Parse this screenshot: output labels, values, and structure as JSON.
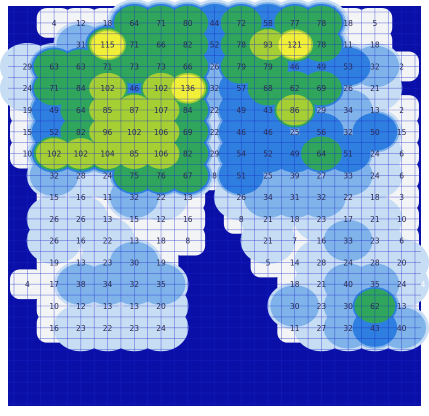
{
  "chart_data": {
    "type": "heatmap",
    "title": "",
    "xlabel": "",
    "ylabel": "",
    "grid": true,
    "legend": "none",
    "colors": {
      "background": "#0a0fa8",
      "grid": "#1a26c8",
      "outer": "#f3f4f5",
      "low": "#c7ddf4",
      "mid_low": "#7fb3ea",
      "mid": "#2f7fe0",
      "mid_high": "#2fa65b",
      "high": "#a6cf34",
      "peak": "#f2ef39"
    },
    "columns": 15,
    "rows": 18,
    "cells": [
      [
        null,
        4,
        12,
        18,
        64,
        71,
        80,
        44,
        72,
        58,
        77,
        78,
        18,
        5,
        null
      ],
      [
        null,
        null,
        31,
        115,
        71,
        66,
        82,
        52,
        78,
        93,
        121,
        78,
        11,
        18,
        null
      ],
      [
        29,
        63,
        63,
        71,
        73,
        73,
        66,
        26,
        79,
        79,
        46,
        49,
        53,
        32,
        2
      ],
      [
        24,
        71,
        84,
        102,
        46,
        102,
        136,
        32,
        57,
        68,
        62,
        69,
        26,
        21,
        null
      ],
      [
        19,
        49,
        64,
        85,
        87,
        107,
        84,
        22,
        49,
        43,
        86,
        29,
        34,
        13,
        2
      ],
      [
        15,
        52,
        82,
        96,
        102,
        106,
        69,
        22,
        46,
        46,
        25,
        56,
        32,
        50,
        15
      ],
      [
        10,
        102,
        102,
        104,
        85,
        106,
        82,
        29,
        54,
        52,
        49,
        64,
        51,
        24,
        6
      ],
      [
        null,
        32,
        28,
        24,
        75,
        76,
        67,
        8,
        51,
        25,
        39,
        27,
        33,
        24,
        6
      ],
      [
        null,
        15,
        16,
        11,
        32,
        22,
        13,
        null,
        26,
        34,
        31,
        32,
        22,
        18,
        3
      ],
      [
        null,
        26,
        26,
        13,
        15,
        12,
        16,
        null,
        8,
        21,
        18,
        23,
        17,
        21,
        10
      ],
      [
        null,
        26,
        16,
        22,
        13,
        18,
        8,
        null,
        null,
        21,
        7,
        16,
        33,
        23,
        6
      ],
      [
        null,
        19,
        13,
        23,
        30,
        19,
        null,
        null,
        null,
        5,
        14,
        28,
        24,
        28,
        20
      ],
      [
        4,
        17,
        38,
        34,
        32,
        35,
        null,
        null,
        null,
        null,
        18,
        21,
        40,
        35,
        24
      ],
      [
        null,
        10,
        12,
        13,
        13,
        20,
        null,
        null,
        null,
        null,
        30,
        23,
        30,
        62,
        13
      ],
      [
        null,
        16,
        23,
        22,
        23,
        24,
        null,
        null,
        null,
        null,
        11,
        27,
        32,
        43,
        40
      ],
      [
        null,
        null,
        null,
        null,
        null,
        null,
        null,
        null,
        null,
        null,
        null,
        null,
        null,
        null,
        null
      ],
      [
        null,
        null,
        null,
        null,
        null,
        null,
        null,
        null,
        null,
        null,
        null,
        null,
        null,
        null,
        null
      ],
      [
        null,
        null,
        null,
        null,
        null,
        null,
        null,
        null,
        null,
        null,
        null,
        null,
        null,
        null,
        null
      ]
    ],
    "edge_labels": [
      {
        "row": 12,
        "col": 15,
        "text": "4"
      },
      {
        "row": 13,
        "col": 15,
        "text": "8"
      }
    ]
  }
}
